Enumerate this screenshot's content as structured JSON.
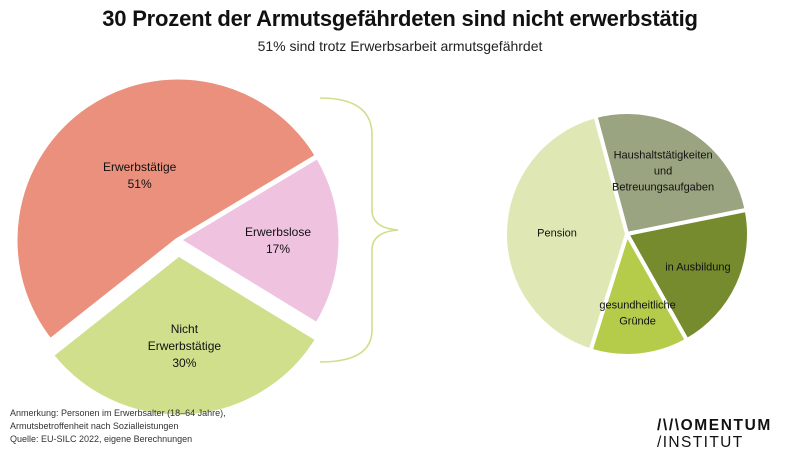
{
  "header": {
    "title": "30 Prozent der Armutsgefährdeten sind nicht erwerbstätig",
    "subtitle": "51% sind trotz Erwerbsarbeit armutsgefährdet"
  },
  "chart_data": [
    {
      "type": "pie",
      "categories": [
        "Erwerbslose",
        "Nicht Erwerbstätige",
        "Erwerbstätige"
      ],
      "values": [
        17,
        30,
        51
      ],
      "labels": [
        [
          "Erwerbslose",
          "17%"
        ],
        [
          "Nicht",
          "Erwerbstätige",
          "30%"
        ],
        [
          "Erwerbstätige",
          "51%"
        ]
      ],
      "colors": [
        "#efc3df",
        "#cfdf8c",
        "#ea907c"
      ],
      "start_angle_deg": -31,
      "exploded": "Nicht Erwerbstätige"
    },
    {
      "type": "pie",
      "categories": [
        "Haushaltstätigkeiten und Betreuungsaufgaben",
        "in Ausbildung",
        "gesundheitliche Gründe",
        "Pension"
      ],
      "values": [
        26,
        20,
        13,
        41
      ],
      "labels": [
        [
          "Haushaltstätigkeiten",
          "und",
          "Betreuungsaufgaben"
        ],
        [
          "in Ausbildung"
        ],
        [
          "gesundheitliche",
          "Gründe"
        ],
        [
          "Pension"
        ]
      ],
      "colors": [
        "#9aa480",
        "#768a2e",
        "#b5cc4a",
        "#dfe8b5"
      ],
      "start_angle_deg": -105
    }
  ],
  "footnote": {
    "lines": [
      "Anmerkung: Personen im Erwerbsalter (18–64 Jahre),",
      "Armutsbetroffenheit nach Sozialleistungen",
      "Quelle: EU-SILC 2022, eigene Berechnungen"
    ]
  },
  "logo": {
    "line1": "/\\/\\OMENTUM",
    "line2": "/INSTITUT"
  },
  "colors": {
    "bracket": "#cfdf8c"
  }
}
